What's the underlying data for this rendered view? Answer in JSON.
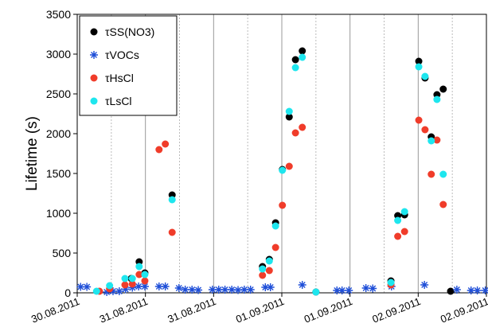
{
  "chart_data": {
    "type": "scatter",
    "y_label": "Lifetime (s)",
    "xlim": [
      0,
      72
    ],
    "ylim": [
      0,
      3500
    ],
    "xticks": [
      {
        "value": 0,
        "label": "30.08.2011"
      },
      {
        "value": 12,
        "label": "31.08.2011"
      },
      {
        "value": 24,
        "label": "31.08.2011"
      },
      {
        "value": 36,
        "label": "01.09.2011"
      },
      {
        "value": 48,
        "label": "01.09.2011"
      },
      {
        "value": 60,
        "label": "02.09.2011"
      },
      {
        "value": 72,
        "label": "02.09.2011"
      }
    ],
    "yticks": [
      0,
      500,
      1000,
      1500,
      2000,
      2500,
      3000,
      3500
    ],
    "grid": true,
    "legend": "upper left",
    "series": [
      {
        "name": "τSS(NO3)",
        "color": "#000000",
        "marker": "circle",
        "x": [
          9.5,
          10.9,
          11.9,
          16.7,
          32.6,
          33.8,
          34.9,
          36.1,
          37.3,
          38.4,
          39.6,
          42,
          55.2,
          56.4,
          57.6,
          60.1,
          61.2,
          62.3,
          63.3,
          64.4,
          65.7
        ],
        "values": [
          180,
          390,
          250,
          1230,
          330,
          420,
          880,
          1550,
          2210,
          2930,
          3040,
          10,
          150,
          970,
          980,
          2910,
          2700,
          1960,
          2490,
          2560,
          20
        ]
      },
      {
        "name": "τVOCs",
        "color": "#1f4fd8",
        "marker": "star",
        "x": [
          0.6,
          1.7,
          5.2,
          6.3,
          7.4,
          8.5,
          9.7,
          10.8,
          11.9,
          14.4,
          15.5,
          17.9,
          19,
          20.2,
          21.3,
          23.8,
          24.9,
          26,
          27.2,
          28.3,
          29.4,
          30.5,
          33.1,
          34,
          39.6,
          45.7,
          46.6,
          47.8,
          50.8,
          52,
          55.3,
          61.1,
          66.8,
          69.3,
          70.4,
          71.8
        ],
        "values": [
          75,
          75,
          10,
          20,
          20,
          45,
          65,
          80,
          80,
          80,
          80,
          60,
          40,
          40,
          35,
          40,
          40,
          40,
          40,
          35,
          40,
          40,
          70,
          70,
          100,
          30,
          30,
          30,
          60,
          55,
          80,
          100,
          40,
          30,
          30,
          30
        ]
      },
      {
        "name": "τHsCl",
        "color": "#f03c2a",
        "marker": "circle",
        "x": [
          3.9,
          5.7,
          8.4,
          9.7,
          10.9,
          11.9,
          14.4,
          15.5,
          16.7,
          32.6,
          33.8,
          34.9,
          36.1,
          37.3,
          38.4,
          39.6,
          55.2,
          56.4,
          57.6,
          60.1,
          61.2,
          62.3,
          63.3,
          64.4
        ],
        "values": [
          20,
          50,
          100,
          110,
          230,
          150,
          1800,
          1870,
          760,
          220,
          280,
          570,
          1100,
          1590,
          2010,
          2080,
          100,
          710,
          770,
          2170,
          2050,
          1490,
          1920,
          1110
        ]
      },
      {
        "name": "τLsCl",
        "color": "#1ee6ee",
        "marker": "circle",
        "x": [
          3.4,
          5.7,
          8.4,
          9.7,
          10.9,
          11.9,
          16.7,
          32.6,
          33.8,
          34.9,
          36.1,
          37.3,
          38.4,
          39.6,
          42,
          55.2,
          56.4,
          57.6,
          60.1,
          61.2,
          62.3,
          63.3,
          64.4
        ],
        "values": [
          20,
          90,
          180,
          180,
          330,
          230,
          1170,
          300,
          400,
          840,
          1540,
          2280,
          2830,
          2960,
          10,
          130,
          910,
          1020,
          2840,
          2720,
          1910,
          2430,
          1490
        ]
      }
    ]
  }
}
